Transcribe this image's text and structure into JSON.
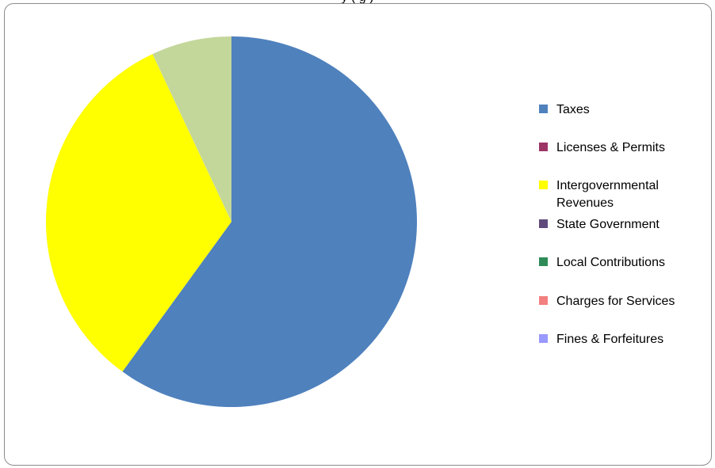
{
  "title_fragment": "y          (          g                          )",
  "chart_data": {
    "type": "pie",
    "slices": [
      {
        "label": "Taxes",
        "value": 60.0,
        "color": "#4f81bd"
      },
      {
        "label": "Licenses & Permits",
        "value": 0.0,
        "color": "#9b3566"
      },
      {
        "label": "Intergovernmental\nRevenues",
        "value": 33.0,
        "color": "#ffff00"
      },
      {
        "label": "State Government",
        "value": 0.0,
        "color": "#604a7b"
      },
      {
        "label": "Local Contributions",
        "value": 0.0,
        "color": "#2e8b57"
      },
      {
        "label": "Charges for Services",
        "value": 0.0,
        "color": "#f28080"
      },
      {
        "label": "Fines & Forfeitures",
        "value": 0.0,
        "color": "#9999ff"
      },
      {
        "label": "",
        "value": 7.0,
        "color": "#c4d79b"
      }
    ],
    "legend_position": "right"
  }
}
